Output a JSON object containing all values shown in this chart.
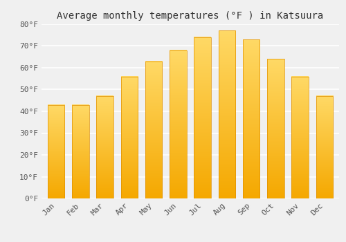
{
  "months": [
    "Jan",
    "Feb",
    "Mar",
    "Apr",
    "May",
    "Jun",
    "Jul",
    "Aug",
    "Sep",
    "Oct",
    "Nov",
    "Dec"
  ],
  "values": [
    43,
    43,
    47,
    56,
    63,
    68,
    74,
    77,
    73,
    64,
    56,
    47
  ],
  "bar_color_bottom": "#F5A800",
  "bar_color_top": "#FFD966",
  "title": "Average monthly temperatures (°F ) in Katsuura",
  "ylim": [
    0,
    80
  ],
  "yticks": [
    0,
    10,
    20,
    30,
    40,
    50,
    60,
    70,
    80
  ],
  "ytick_labels": [
    "0°F",
    "10°F",
    "20°F",
    "30°F",
    "40°F",
    "50°F",
    "60°F",
    "70°F",
    "80°F"
  ],
  "background_color": "#f0f0f0",
  "grid_color": "#ffffff",
  "title_fontsize": 10,
  "tick_fontsize": 8,
  "bar_edge_color": "#E09000",
  "bar_width": 0.7
}
